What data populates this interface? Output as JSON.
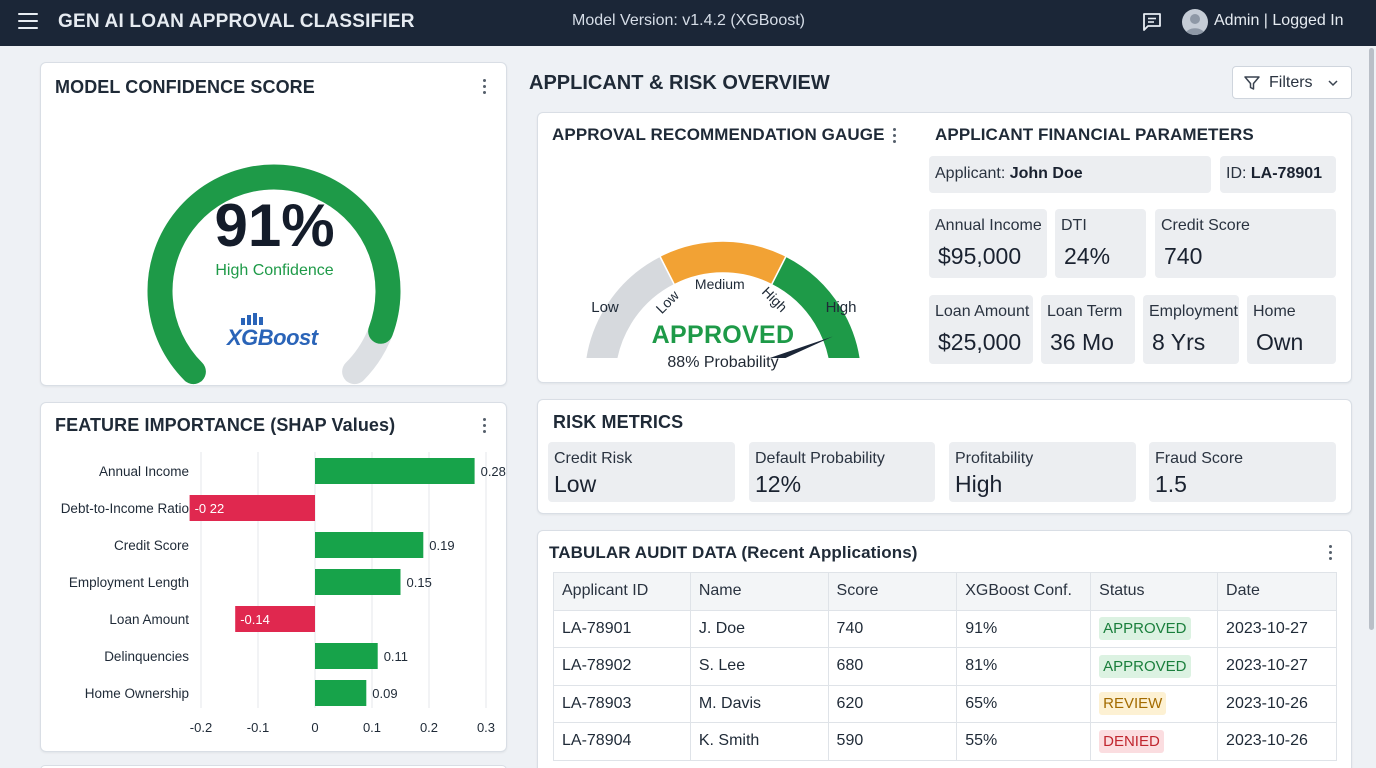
{
  "header": {
    "app_title": "GEN AI LOAN APPROVAL CLASSIFIER",
    "model_version": "Model Version: v1.4.2 (XGBoost)",
    "user": "Admin | Logged In",
    "bg_color": "#1b2637"
  },
  "confidence": {
    "title": "MODEL CONFIDENCE SCORE",
    "value": "91%",
    "value_fraction": 0.91,
    "label": "High Confidence",
    "logo_text": "XGBoost",
    "arc_color": "#1e9a48"
  },
  "overview": {
    "title": "APPLICANT & RISK OVERVIEW",
    "filters_label": "Filters"
  },
  "gauge": {
    "title": "APPROVAL RECOMMENDATION GAUGE",
    "zone_labels": [
      "Low",
      "Medium",
      "High"
    ],
    "end_labels": [
      "Low",
      "High"
    ],
    "status": "APPROVED",
    "probability_text": "88% Probability",
    "probability": 0.88,
    "colors": {
      "low": "#d6d9dd",
      "medium": "#f2a234",
      "high": "#1e9a48",
      "needle": "#1b2637"
    }
  },
  "params": {
    "title": "APPLICANT FINANCIAL PARAMETERS",
    "applicant_prefix": "Applicant: ",
    "applicant_name": "John Doe",
    "id_prefix": "ID: ",
    "id": "LA-78901",
    "items": [
      {
        "label": "Annual Income",
        "value": "$95,000"
      },
      {
        "label": "DTI",
        "value": "24%"
      },
      {
        "label": "Credit Score",
        "value": "740"
      },
      {
        "label": "Loan Amount",
        "value": "$25,000"
      },
      {
        "label": "Loan Term",
        "value": "36 Mo"
      },
      {
        "label": "Employment",
        "value": "8 Yrs"
      },
      {
        "label": "Home",
        "value": "Own"
      }
    ]
  },
  "risk": {
    "title": "RISK METRICS",
    "items": [
      {
        "label": "Credit Risk",
        "value": "Low"
      },
      {
        "label": "Default Probability",
        "value": "12%"
      },
      {
        "label": "Profitability",
        "value": "High"
      },
      {
        "label": "Fraud Score",
        "value": "1.5"
      }
    ]
  },
  "chart_data": {
    "type": "bar",
    "orientation": "horizontal",
    "title": "FEATURE IMPORTANCE (SHAP Values)",
    "categories": [
      "Annual Income",
      "Debt-to-Income Ratio",
      "Credit Score",
      "Employment Length",
      "Loan Amount",
      "Delinquencies",
      "Home Ownership"
    ],
    "values": [
      0.28,
      -0.22,
      0.19,
      0.15,
      -0.14,
      0.11,
      0.09
    ],
    "value_labels": [
      "0.28",
      "-0 22",
      "0.19",
      "0.15",
      "-0.14",
      "0.11",
      "0.09"
    ],
    "xlim": [
      -0.2,
      0.3
    ],
    "xticks": [
      -0.2,
      -0.1,
      0,
      0.1,
      0.2,
      0.3
    ],
    "xtick_labels": [
      "-0.2",
      "-0.1",
      "0",
      "0.1",
      "0.2",
      "0.3"
    ],
    "grid": true,
    "colors": {
      "positive": "#17a34a",
      "negative": "#e0284f"
    }
  },
  "audit": {
    "title": "TABULAR AUDIT DATA (Recent Applications)",
    "columns": [
      "Applicant ID",
      "Name",
      "Score",
      "XGBoost Conf.",
      "Status",
      "Date"
    ],
    "rows": [
      [
        "LA-78901",
        "J. Doe",
        "740",
        "91%",
        "APPROVED",
        "2023-10-27"
      ],
      [
        "LA-78902",
        "S. Lee",
        "680",
        "81%",
        "APPROVED",
        "2023-10-27"
      ],
      [
        "LA-78903",
        "M. Davis",
        "620",
        "65%",
        "REVIEW",
        "2023-10-26"
      ],
      [
        "LA-78904",
        "K. Smith",
        "590",
        "55%",
        "DENIED",
        "2023-10-26"
      ]
    ]
  }
}
